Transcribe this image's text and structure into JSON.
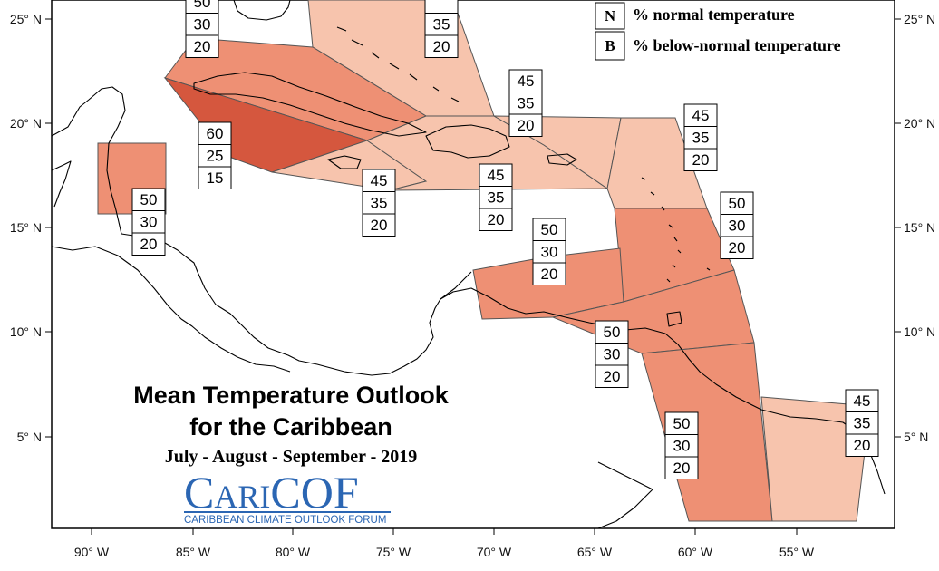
{
  "title": {
    "line1": "Mean Temperature Outlook",
    "line2": "for the Caribbean",
    "period": "July - August - September - 2019"
  },
  "logo": {
    "name_part1": "C",
    "name_part2": "ARI",
    "name_part3": "COF",
    "tagline": "CARIBBEAN CLIMATE OUTLOOK FORUM"
  },
  "legend": [
    {
      "key": "N",
      "label": "% normal temperature"
    },
    {
      "key": "B",
      "label": "% below-normal temperature"
    }
  ],
  "axes": {
    "x_ticks": [
      "90° W",
      "85° W",
      "80° W",
      "75° W",
      "70° W",
      "65° W",
      "60° W",
      "55° W"
    ],
    "y_ticks": [
      "25° N",
      "20° N",
      "15° N",
      "10° N",
      "5° N"
    ]
  },
  "colors": {
    "prob_45": "#f7c4ad",
    "prob_50": "#ee9074",
    "prob_60": "#d5573e",
    "coast": "#000000"
  },
  "regions": [
    {
      "id": "bahamas",
      "values": [
        "",
        "35",
        "20"
      ],
      "fill": "#f7c4ad"
    },
    {
      "id": "cuba-west",
      "values": [
        "50",
        "30",
        "20"
      ],
      "fill": "#ee9074"
    },
    {
      "id": "cayman",
      "values": [
        "60",
        "25",
        "15"
      ],
      "fill": "#d5573e"
    },
    {
      "id": "belize",
      "values": [
        "50",
        "30",
        "20"
      ],
      "fill": "#ee9074"
    },
    {
      "id": "jamaica",
      "values": [
        "45",
        "35",
        "20"
      ],
      "fill": "#f7c4ad"
    },
    {
      "id": "hispaniola",
      "values": [
        "45",
        "35",
        "20"
      ],
      "fill": "#f7c4ad"
    },
    {
      "id": "puerto-rico",
      "values": [
        "45",
        "35",
        "20"
      ],
      "fill": "#f7c4ad"
    },
    {
      "id": "leeward-islands",
      "values": [
        "45",
        "35",
        "20"
      ],
      "fill": "#f7c4ad"
    },
    {
      "id": "windward-islands",
      "values": [
        "50",
        "30",
        "20"
      ],
      "fill": "#ee9074"
    },
    {
      "id": "abc-islands",
      "values": [
        "50",
        "30",
        "20"
      ],
      "fill": "#ee9074"
    },
    {
      "id": "trinidad",
      "values": [
        "50",
        "30",
        "20"
      ],
      "fill": "#ee9074"
    },
    {
      "id": "guyana",
      "values": [
        "50",
        "30",
        "20"
      ],
      "fill": "#ee9074"
    },
    {
      "id": "french-guiana",
      "values": [
        "45",
        "35",
        "20"
      ],
      "fill": "#f7c4ad"
    }
  ]
}
